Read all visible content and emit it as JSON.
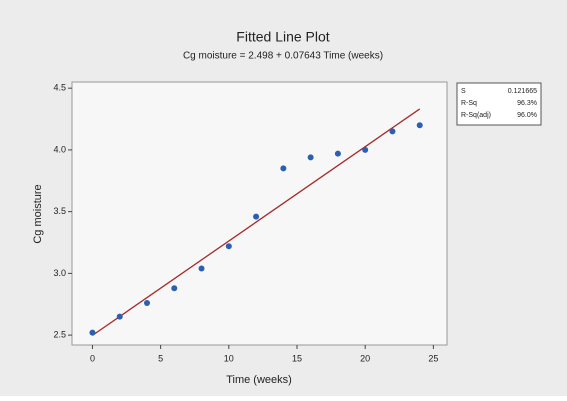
{
  "chart_data": {
    "type": "scatter",
    "title": "Fitted Line Plot",
    "subtitle": "Cg moisture = 2.498 + 0.07643 Time (weeks)",
    "x_label": "Time (weeks)",
    "y_label": "Cg moisture",
    "x": [
      0,
      2,
      4,
      6,
      8,
      10,
      12,
      14,
      16,
      18,
      20,
      22,
      24
    ],
    "values": [
      2.52,
      2.65,
      2.76,
      2.88,
      3.04,
      3.22,
      3.46,
      3.85,
      3.94,
      3.97,
      4.0,
      4.15,
      4.2
    ],
    "color": "#2b5fb0",
    "fit_line": {
      "x": [
        0,
        24
      ],
      "values": [
        2.498,
        4.332
      ],
      "color": "#a52a2a"
    },
    "xlim": [
      -1.5,
      26
    ],
    "xticks": [
      0,
      5,
      10,
      15,
      20,
      25
    ],
    "ylim": [
      2.42,
      4.55
    ],
    "yticks": [
      {
        "value": 2.5,
        "label": "2.5"
      },
      {
        "value": 3,
        "label": "3.0"
      },
      {
        "value": 3.5,
        "label": "3.5"
      },
      {
        "value": 4,
        "label": "4.0"
      },
      {
        "value": 4.5,
        "label": "4.5"
      }
    ],
    "stats": [
      [
        "S",
        "0.121665"
      ],
      [
        "R-Sq",
        "96.3%"
      ],
      [
        "R-Sq(adj)",
        "96.0%"
      ]
    ]
  }
}
